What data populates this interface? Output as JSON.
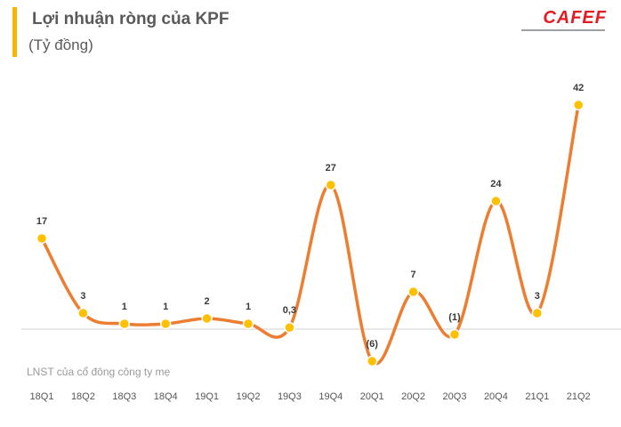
{
  "header": {
    "title": "Lợi nhuận ròng của KPF",
    "subtitle": "(Tỷ đồng)",
    "logo": "CAFEF"
  },
  "note": "LNST của cổ đông công ty mẹ",
  "colors": {
    "line": "#ed7d31",
    "marker": "#ffc000",
    "accent": "#f5b700",
    "logo": "#e31b23"
  },
  "chart_data": {
    "type": "line",
    "title": "Lợi nhuận ròng của KPF",
    "ylabel": "Tỷ đồng",
    "categories": [
      "18Q1",
      "18Q2",
      "18Q3",
      "18Q4",
      "19Q1",
      "19Q2",
      "19Q3",
      "19Q4",
      "20Q1",
      "20Q2",
      "20Q3",
      "20Q4",
      "21Q1",
      "21Q2"
    ],
    "values": [
      17,
      3,
      1,
      1,
      2,
      1,
      0.3,
      27,
      -6,
      7,
      -1,
      24,
      3,
      42
    ],
    "labels": [
      "17",
      "3",
      "1",
      "1",
      "2",
      "1",
      "0,3",
      "27",
      "(6)",
      "7",
      "(1)",
      "24",
      "3",
      "42"
    ],
    "smooth": true,
    "grid": false,
    "ylim": [
      -8,
      44
    ]
  }
}
